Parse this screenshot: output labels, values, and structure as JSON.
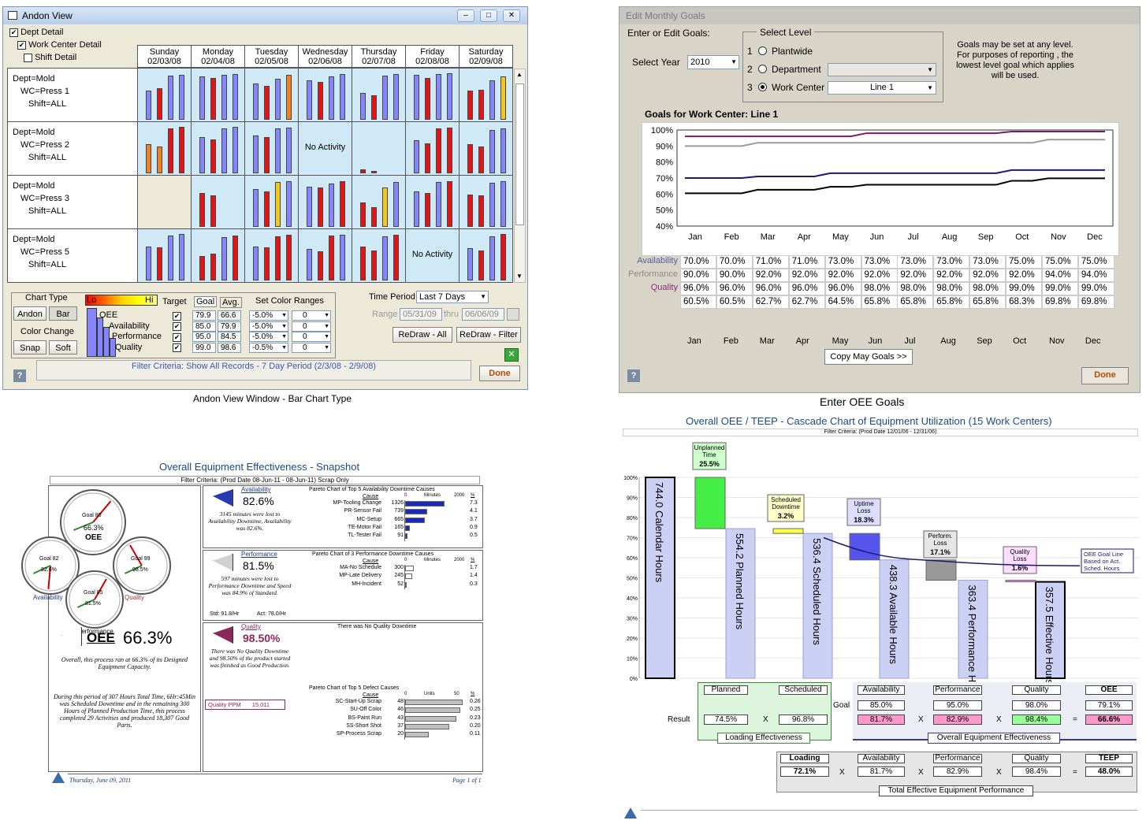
{
  "andon": {
    "title": "Andon View",
    "caption": "Andon View Window - Bar Chart Type",
    "opts": {
      "dept": "Dept Detail",
      "wc": "Work Center Detail",
      "shift": "Shift Detail"
    },
    "days": [
      {
        "d": "Sunday",
        "dt": "02/03/08"
      },
      {
        "d": "Monday",
        "dt": "02/04/08"
      },
      {
        "d": "Tuesday",
        "dt": "02/05/08"
      },
      {
        "d": "Wednesday",
        "dt": "02/06/08"
      },
      {
        "d": "Thursday",
        "dt": "02/07/08"
      },
      {
        "d": "Friday",
        "dt": "02/08/08"
      },
      {
        "d": "Saturday",
        "dt": "02/09/08"
      }
    ],
    "rows": [
      {
        "dept": "Dept=Mold",
        "wc": "WC=Press 1",
        "shift": "Shift=ALL",
        "cells": [
          [
            60,
            65,
            90,
            92
          ],
          [
            88,
            85,
            92,
            94
          ],
          [
            74,
            70,
            84,
            92
          ],
          [
            80,
            78,
            88,
            93
          ],
          [
            55,
            50,
            90,
            93
          ],
          [
            92,
            85,
            93,
            95
          ],
          [
            60,
            62,
            80,
            88
          ]
        ]
      },
      {
        "dept": "Dept=Mold",
        "wc": "WC=Press 2",
        "shift": "Shift=ALL",
        "cells": [
          [
            60,
            55,
            92,
            95
          ],
          [
            75,
            70,
            92,
            95
          ],
          [
            78,
            75,
            92,
            94
          ],
          null,
          [
            8,
            5,
            0,
            0
          ],
          [
            68,
            62,
            92,
            94
          ],
          [
            60,
            55,
            88,
            92
          ]
        ]
      },
      {
        "dept": "Dept=Mold",
        "wc": "WC=Press 3",
        "shift": "Shift=ALL",
        "cells": [
          null,
          [
            70,
            65,
            0,
            0
          ],
          [
            78,
            72,
            92,
            94
          ],
          [
            82,
            80,
            88,
            93
          ],
          [
            50,
            40,
            80,
            92
          ],
          [
            72,
            70,
            92,
            94
          ],
          [
            66,
            64,
            90,
            93
          ]
        ]
      },
      {
        "dept": "Dept=Mold",
        "wc": "WC=Press 5",
        "shift": "Shift=ALL",
        "cells": [
          [
            70,
            68,
            92,
            95
          ],
          [
            50,
            55,
            88,
            92
          ],
          [
            70,
            68,
            90,
            93
          ],
          [
            65,
            60,
            92,
            94
          ],
          [
            70,
            62,
            90,
            93
          ],
          null,
          [
            66,
            62,
            90,
            95
          ]
        ]
      }
    ],
    "bar_colors": [
      "#8585ff",
      "#e51414",
      "#f08020",
      "#f4c81a"
    ],
    "no_activity": "No Activity",
    "chart_type": "Chart Type",
    "andon_btn": "Andon",
    "bar_btn": "Bar",
    "color_change": "Color Change",
    "snap": "Snap",
    "soft": "Soft",
    "lo": "Lo",
    "hi": "Hi",
    "target": "Target",
    "goal": "Goal",
    "avg": "Avg.",
    "set_color": "Set Color Ranges",
    "metrics": [
      {
        "n": "OEE",
        "g": "79.9",
        "a": "66.6",
        "r1": "-5.0%",
        "r2": "0"
      },
      {
        "n": "Availability",
        "g": "85.0",
        "a": "79.9",
        "r1": "-5.0%",
        "r2": "0"
      },
      {
        "n": "Performance",
        "g": "95.0",
        "a": "84.5",
        "r1": "-5.0%",
        "r2": "0"
      },
      {
        "n": "Quality",
        "g": "99.0",
        "a": "98.6",
        "r1": "-0.5%",
        "r2": "0"
      }
    ],
    "time_period": "Time Period",
    "period_val": "Last 7 Days",
    "range": "Range",
    "from": "05/31/09",
    "thru": "thru",
    "to": "06/06/09",
    "redraw_all": "ReDraw - All",
    "redraw_filter": "ReDraw - Filter",
    "done": "Done",
    "filter": "Filter Criteria: Show All Records - 7 Day Period (2/3/08 - 2/9/08)"
  },
  "goals": {
    "title": "Edit Monthly Goals",
    "caption": "Enter OEE Goals",
    "enter": "Enter or Edit Goals:",
    "select_year": "Select Year",
    "year": "2010",
    "select_level": "Select Level",
    "levels": [
      {
        "n": "1",
        "l": "Plantwide",
        "v": ""
      },
      {
        "n": "2",
        "l": "Department",
        "v": ""
      },
      {
        "n": "3",
        "l": "Work Center",
        "v": "Line 1"
      }
    ],
    "note": "Goals may be set at any level. For purposes of reporting , the lowest level goal which applies will be used.",
    "chart_title": "Goals for Work Center: Line 1",
    "chart_data": {
      "type": "line",
      "categories": [
        "Jan",
        "Feb",
        "Mar",
        "Apr",
        "May",
        "Jun",
        "Jul",
        "Aug",
        "Sep",
        "Oct",
        "Nov",
        "Dec"
      ],
      "ylim": [
        40,
        100
      ],
      "yticks": [
        "100%",
        "90%",
        "80%",
        "70%",
        "60%",
        "50%",
        "40%"
      ],
      "series": [
        {
          "name": "Availability",
          "color": "#1a1a7a",
          "values": [
            70,
            70,
            71,
            71,
            73,
            73,
            73,
            73,
            73,
            75,
            75,
            75
          ]
        },
        {
          "name": "Performance",
          "color": "#9a9a9a",
          "values": [
            90,
            90,
            92,
            92,
            92,
            92,
            92,
            92,
            92,
            92,
            94,
            94
          ]
        },
        {
          "name": "Quality",
          "color": "#7a1a6a",
          "values": [
            96,
            96,
            96,
            96,
            96,
            98,
            98,
            98,
            98,
            99,
            99,
            99
          ]
        },
        {
          "name": "OEE",
          "color": "#000000",
          "values": [
            60.5,
            60.5,
            62.7,
            62.7,
            64.5,
            65.8,
            65.8,
            65.8,
            65.8,
            68.3,
            69.8,
            69.8
          ]
        }
      ]
    },
    "table": [
      {
        "n": "Availability",
        "c": "#5a5aa0",
        "v": [
          "70.0%",
          "70.0%",
          "71.0%",
          "71.0%",
          "73.0%",
          "73.0%",
          "73.0%",
          "73.0%",
          "73.0%",
          "75.0%",
          "75.0%",
          "75.0%"
        ]
      },
      {
        "n": "Performance",
        "c": "#8a8a8a",
        "v": [
          "90.0%",
          "90.0%",
          "92.0%",
          "92.0%",
          "92.0%",
          "92.0%",
          "92.0%",
          "92.0%",
          "92.0%",
          "92.0%",
          "94.0%",
          "94.0%"
        ]
      },
      {
        "n": "Quality",
        "c": "#8a2a7a",
        "v": [
          "96.0%",
          "96.0%",
          "96.0%",
          "96.0%",
          "96.0%",
          "98.0%",
          "98.0%",
          "98.0%",
          "98.0%",
          "99.0%",
          "99.0%",
          "99.0%"
        ]
      },
      {
        "n": "OEE",
        "c": "#000",
        "v": [
          "60.5%",
          "60.5%",
          "62.7%",
          "62.7%",
          "64.5%",
          "65.8%",
          "65.8%",
          "65.8%",
          "65.8%",
          "68.3%",
          "69.8%",
          "69.8%"
        ]
      }
    ],
    "copy": "Copy May Goals >>",
    "done": "Done"
  },
  "snap": {
    "title": "Overall Equipment Effectiveness - Snapshot",
    "filter": "Filter Criteria: (Prod Date 08-Jun-11 - 08-Jun-11) Scrap Only",
    "gauges": [
      {
        "n": "OEE",
        "g": "Goal 80",
        "v": "66.3%"
      },
      {
        "n": "Availability",
        "g": "Goal 82",
        "v": "82.6%"
      },
      {
        "n": "Quality",
        "g": "Goal 99",
        "v": "98.5%"
      },
      {
        "n": "Performance",
        "g": "Goal 85",
        "v": "81.5%"
      }
    ],
    "oee_label": "OEE",
    "oee_val": "66.3%",
    "oee_text": "Overall, this process ran at 66.3% of its Designed Equipment Capacity.",
    "period_text": "During this period of 307 Hours Total Time, 6Hr:45Min was Scheduled Downtime and in the remaining 300 Hours of Planned Production Time, this process completed 29 Activities and produced 18,307 Good Parts.",
    "sections": [
      {
        "k": "Availability",
        "v": "82.6%",
        "c": "#2a3ab0",
        "txt": "3145 minutes were lost to Availability Downtime, Availability was 82.6%.",
        "ptitle": "Pareto Chart of Top 5 Availability Downtime Causes",
        "unit": "Minutes",
        "max": "2000",
        "bar": "#1a2ab8",
        "items": [
          {
            "c": "MP-Tooling Change",
            "v": 1326,
            "p": "7.3"
          },
          {
            "c": "PR-Sensor Fail",
            "v": 739,
            "p": "4.1"
          },
          {
            "c": "MC-Setup",
            "v": 665,
            "p": "3.7"
          },
          {
            "c": "TE-Motor Fail",
            "v": 165,
            "p": "0.9"
          },
          {
            "c": "TL-Tester Fail",
            "v": 91,
            "p": "0.5"
          }
        ]
      },
      {
        "k": "Performance",
        "v": "81.5%",
        "c": "#d0d0d0",
        "txt": "597 minutes were lost to Performance Downtime and Speed was 84.9% of Standard.",
        "std": "Std: 91.8/Hr",
        "act": "Act: 78.0/Hr",
        "ptitle": "Pareto Chart of 3 Performance Downtime Causes",
        "unit": "Minutes",
        "max": "2000",
        "bar": "#ffffff",
        "items": [
          {
            "c": "MA-No Schedule",
            "v": 300,
            "p": "1.7"
          },
          {
            "c": "MP-Late Delivery",
            "v": 245,
            "p": "1.4"
          },
          {
            "c": "MH-Incident",
            "v": 52,
            "p": "0.3"
          }
        ]
      },
      {
        "k": "Quality",
        "v": "98.50%",
        "c": "#8a2a5a",
        "txt": "There was No Quality Downtime and 98.50% of the product started was finished as Good Production.",
        "ppm_l": "Quality PPM",
        "ppm": "15,011",
        "nodown": "There was No Quality Downtime",
        "ptitle": "Pareto Chart of Top 5 Defect Causes",
        "unit": "Units",
        "max": "50",
        "bar": "#c0c0c0",
        "items": [
          {
            "c": "SC-Start-Up Scrap",
            "v": 48,
            "p": "0.26"
          },
          {
            "c": "SU-Off Color",
            "v": 46,
            "p": "0.25"
          },
          {
            "c": "BS-Paint Run",
            "v": 43,
            "p": "0.23"
          },
          {
            "c": "SS-Short Shot",
            "v": 37,
            "p": "0.20"
          },
          {
            "c": "SP-Process Scrap",
            "v": 20,
            "p": "0.11"
          }
        ]
      }
    ],
    "cause": "Cause",
    "pct": "%",
    "zero": "0",
    "footer_date": "Thursday, June 09, 2011",
    "footer_page": "Page 1 of 1"
  },
  "cascade": {
    "title": "Overall OEE / TEEP - Cascade Chart of Equipment Utilization (15 Work Centers)",
    "filter": "Filter Criteria: (Prod Date 12/01/06 - 12/31/06)",
    "yticks": [
      "100%",
      "90%",
      "80%",
      "70%",
      "60%",
      "50%",
      "40%",
      "30%",
      "20%",
      "10%",
      "0%"
    ],
    "chart_data": {
      "type": "bar",
      "bars": [
        {
          "label": "744.0 Calendar Hours",
          "top": 100,
          "bottom": 0
        },
        {
          "label": "554.2 Planned Hours",
          "top": 74.5,
          "bottom": 0
        },
        {
          "label": "536.4 Scheduled Hours",
          "top": 72.1,
          "bottom": 0
        },
        {
          "label": "438.3 Available Hours",
          "top": 58.9,
          "bottom": 0
        },
        {
          "label": "363.4 Performance Hours",
          "top": 48.8,
          "bottom": 0
        },
        {
          "label": "357.5 Effective Hours",
          "top": 48.0,
          "bottom": 0
        }
      ],
      "losses": [
        {
          "t": "Unplanned Time",
          "v": "25.5%",
          "top": 100,
          "bottom": 74.5,
          "c": "#44ee44"
        },
        {
          "t": "Scheduled Downtime",
          "v": "3.2%",
          "top": 74.5,
          "bottom": 72.1,
          "c": "#ffff44"
        },
        {
          "t": "Uptime Loss",
          "v": "18.3%",
          "top": 72.1,
          "bottom": 58.9,
          "c": "#5555ee"
        },
        {
          "t": "Perform. Loss",
          "v": "17.1%",
          "top": 58.9,
          "bottom": 48.8,
          "c": "#999999"
        },
        {
          "t": "Quality Loss",
          "v": "1.6%",
          "top": 48.8,
          "bottom": 48.0,
          "c": "#ff88ee"
        }
      ]
    },
    "goal_line": "OEE Goal Line Based on Act. Sched. Hours",
    "goal": "Goal",
    "result": "Result",
    "x": "X",
    "eq": "=",
    "planned": "Planned",
    "scheduled": "Scheduled",
    "planned_v": "74.5%",
    "scheduled_v": "96.8%",
    "loading_eff": "Loading Effectiveness",
    "avail": "Availability",
    "perf": "Performance",
    "qual": "Quality",
    "oee": "OEE",
    "g_avail": "85.0%",
    "g_perf": "95.0%",
    "g_qual": "98.0%",
    "g_oee": "79.1%",
    "r_avail": "81.7%",
    "r_perf": "82.9%",
    "r_qual": "98.4%",
    "r_oee": "66.6%",
    "oee_eff": "Overall Equipment Effectiveness",
    "loading": "Loading",
    "loading_v": "72.1%",
    "teep": "TEEP",
    "teep_v": "48.0%",
    "teep_lbl": "Total Effective Equipment Performance"
  }
}
